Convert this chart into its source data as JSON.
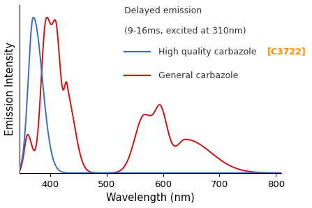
{
  "title_line1": "Delayed emission",
  "title_line2": "(9-16ms, excited at 310nm)",
  "legend_blue_text": "High quality carbazole ",
  "legend_blue_bracket": "[C3722]",
  "legend_red": "General carbazole",
  "xlabel": "Wavelength (nm)",
  "ylabel": "Emission Intensity",
  "xlim": [
    345,
    810
  ],
  "ylim": [
    0,
    1.08
  ],
  "blue_color": "#3A6BC4",
  "red_color": "#CC1111",
  "orange_color": "#FF8C00",
  "dark_text": "#333333",
  "xticks": [
    400,
    500,
    600,
    700,
    800
  ],
  "tick_fontsize": 9.5,
  "label_fontsize": 10.5,
  "annot_fontsize": 9.0
}
